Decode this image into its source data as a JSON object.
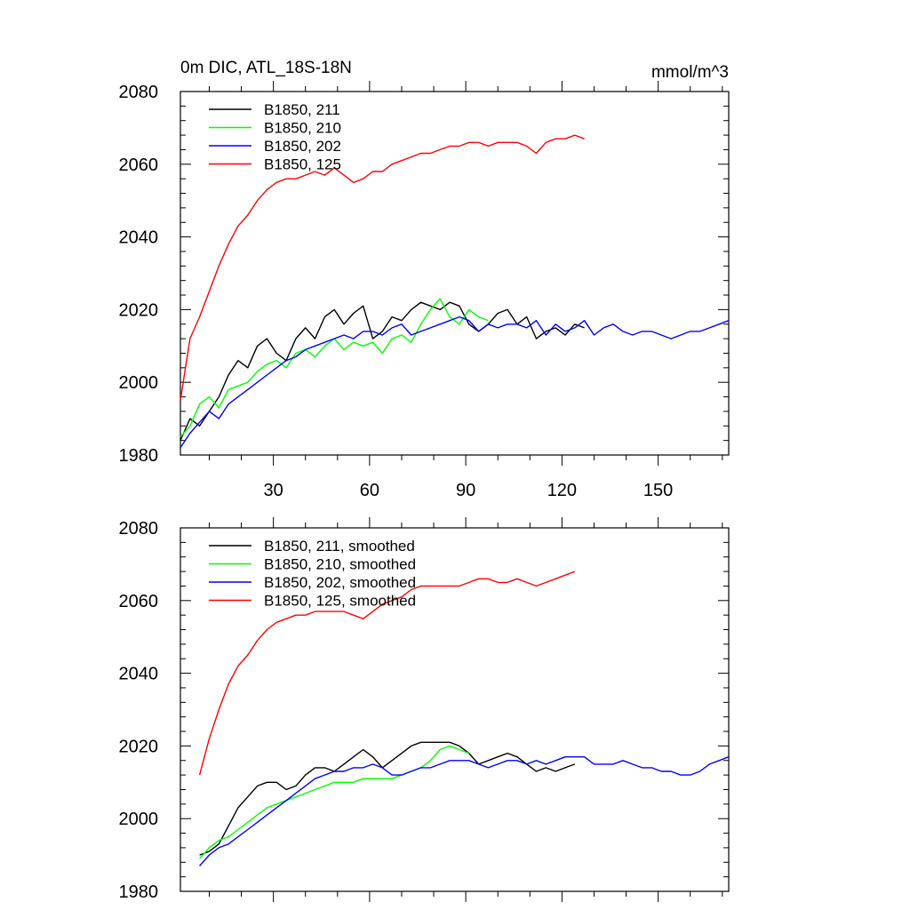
{
  "figure": {
    "title_left": "0m DIC, ATL_18S-18N",
    "title_right": "mmol/m^3"
  },
  "chart_data": [
    {
      "type": "line",
      "panel": "top",
      "xlim": [
        1,
        172
      ],
      "ylim": [
        1980,
        2080
      ],
      "xticks": [
        30,
        60,
        90,
        120,
        150
      ],
      "xtick_labels": [
        "30",
        "60",
        "90",
        "120",
        "150"
      ],
      "yticks": [
        1980,
        2000,
        2020,
        2040,
        2060,
        2080
      ],
      "ytick_labels": [
        "1980",
        "2000",
        "2020",
        "2040",
        "2060",
        "2080"
      ],
      "legend_position": "top-left",
      "series": [
        {
          "name": "B1850, 211",
          "color": "#000000",
          "x": [
            1,
            4,
            7,
            10,
            13,
            16,
            19,
            22,
            25,
            28,
            31,
            34,
            37,
            40,
            43,
            46,
            49,
            52,
            55,
            58,
            61,
            64,
            67,
            70,
            73,
            76,
            79,
            82,
            85,
            88,
            91,
            94,
            97,
            100,
            103,
            106,
            109,
            112,
            115,
            118,
            121,
            124,
            127
          ],
          "y": [
            1984,
            1990,
            1988,
            1992,
            1996,
            2002,
            2006,
            2004,
            2010,
            2012,
            2008,
            2006,
            2012,
            2015,
            2012,
            2018,
            2020,
            2016,
            2019,
            2021,
            2012,
            2014,
            2018,
            2017,
            2020,
            2022,
            2021,
            2020,
            2022,
            2021,
            2016,
            2014,
            2016,
            2019,
            2020,
            2016,
            2018,
            2012,
            2014,
            2015,
            2013,
            2016,
            2015
          ]
        },
        {
          "name": "B1850, 210",
          "color": "#00ff00",
          "x": [
            1,
            4,
            7,
            10,
            13,
            16,
            19,
            22,
            25,
            28,
            31,
            34,
            37,
            40,
            43,
            46,
            49,
            52,
            55,
            58,
            61,
            64,
            67,
            70,
            73,
            76,
            79,
            82,
            85,
            88,
            91,
            94,
            97
          ],
          "y": [
            1985,
            1988,
            1994,
            1996,
            1993,
            1998,
            1999,
            2000,
            2003,
            2005,
            2006,
            2004,
            2008,
            2009,
            2007,
            2010,
            2012,
            2009,
            2011,
            2010,
            2011,
            2008,
            2012,
            2013,
            2011,
            2016,
            2020,
            2023,
            2018,
            2016,
            2020,
            2018,
            2017
          ]
        },
        {
          "name": "B1850, 202",
          "color": "#0000ff",
          "x": [
            1,
            4,
            7,
            10,
            13,
            16,
            19,
            22,
            25,
            28,
            31,
            34,
            37,
            40,
            43,
            46,
            49,
            52,
            55,
            58,
            61,
            64,
            67,
            70,
            73,
            76,
            79,
            82,
            85,
            88,
            91,
            94,
            97,
            100,
            103,
            106,
            109,
            112,
            115,
            118,
            121,
            124,
            127,
            130,
            133,
            136,
            139,
            142,
            145,
            148,
            151,
            154,
            157,
            160,
            163,
            166,
            169,
            172
          ],
          "y": [
            1982,
            1986,
            1989,
            1992,
            1990,
            1994,
            1996,
            1998,
            2000,
            2002,
            2004,
            2006,
            2007,
            2009,
            2010,
            2011,
            2012,
            2013,
            2012,
            2014,
            2014,
            2013,
            2015,
            2016,
            2013,
            2014,
            2015,
            2016,
            2017,
            2018,
            2017,
            2014,
            2016,
            2015,
            2016,
            2016,
            2015,
            2017,
            2013,
            2016,
            2014,
            2015,
            2017,
            2013,
            2015,
            2016,
            2014,
            2013,
            2014,
            2014,
            2013,
            2012,
            2013,
            2014,
            2014,
            2015,
            2016,
            2017
          ]
        },
        {
          "name": "B1850, 125",
          "color": "#ff0000",
          "x": [
            1,
            4,
            7,
            10,
            13,
            16,
            19,
            22,
            25,
            28,
            31,
            34,
            37,
            40,
            43,
            46,
            49,
            52,
            55,
            58,
            61,
            64,
            67,
            70,
            73,
            76,
            79,
            82,
            85,
            88,
            91,
            94,
            97,
            100,
            103,
            106,
            109,
            112,
            115,
            118,
            121,
            124,
            127
          ],
          "y": [
            1995,
            2012,
            2018,
            2025,
            2032,
            2038,
            2043,
            2046,
            2050,
            2053,
            2055,
            2056,
            2056,
            2057,
            2058,
            2057,
            2059,
            2057,
            2055,
            2056,
            2058,
            2058,
            2060,
            2061,
            2062,
            2063,
            2063,
            2064,
            2065,
            2065,
            2066,
            2066,
            2065,
            2066,
            2066,
            2066,
            2065,
            2063,
            2066,
            2067,
            2067,
            2068,
            2067
          ]
        }
      ]
    },
    {
      "type": "line",
      "panel": "bottom",
      "xlim": [
        1,
        172
      ],
      "ylim": [
        1980,
        2080
      ],
      "xticks": [
        30,
        60,
        90,
        120,
        150
      ],
      "yticks": [
        1980,
        2000,
        2020,
        2040,
        2060,
        2080
      ],
      "ytick_labels": [
        "1980",
        "2000",
        "2020",
        "2040",
        "2060",
        "2080"
      ],
      "legend_position": "top-left",
      "series": [
        {
          "name": "B1850, 211, smoothed",
          "color": "#000000",
          "x": [
            7,
            10,
            13,
            16,
            19,
            22,
            25,
            28,
            31,
            34,
            37,
            40,
            43,
            46,
            49,
            52,
            55,
            58,
            61,
            64,
            67,
            70,
            73,
            76,
            79,
            82,
            85,
            88,
            91,
            94,
            97,
            100,
            103,
            106,
            109,
            112,
            115,
            118,
            121,
            124
          ],
          "y": [
            1990,
            1991,
            1993,
            1998,
            2003,
            2006,
            2009,
            2010,
            2010,
            2008,
            2009,
            2012,
            2014,
            2014,
            2013,
            2015,
            2017,
            2019,
            2017,
            2014,
            2016,
            2018,
            2020,
            2021,
            2021,
            2021,
            2021,
            2020,
            2018,
            2015,
            2016,
            2017,
            2018,
            2017,
            2015,
            2013,
            2014,
            2013,
            2014,
            2015
          ]
        },
        {
          "name": "B1850, 210, smoothed",
          "color": "#00ff00",
          "x": [
            7,
            10,
            13,
            16,
            19,
            22,
            25,
            28,
            31,
            34,
            37,
            40,
            43,
            46,
            49,
            52,
            55,
            58,
            61,
            64,
            67,
            70,
            73,
            76,
            79,
            82,
            85,
            88,
            91
          ],
          "y": [
            1989,
            1992,
            1994,
            1995,
            1997,
            1999,
            2001,
            2003,
            2004,
            2005,
            2006,
            2007,
            2008,
            2009,
            2010,
            2010,
            2010,
            2011,
            2011,
            2011,
            2011,
            2012,
            2013,
            2014,
            2016,
            2019,
            2020,
            2019,
            2018
          ]
        },
        {
          "name": "B1850, 202, smoothed",
          "color": "#0000ff",
          "x": [
            7,
            10,
            13,
            16,
            19,
            22,
            25,
            28,
            31,
            34,
            37,
            40,
            43,
            46,
            49,
            52,
            55,
            58,
            61,
            64,
            67,
            70,
            73,
            76,
            79,
            82,
            85,
            88,
            91,
            94,
            97,
            100,
            103,
            106,
            109,
            112,
            115,
            118,
            121,
            124,
            127,
            130,
            133,
            136,
            139,
            142,
            145,
            148,
            151,
            154,
            157,
            160,
            163,
            166,
            169,
            172
          ],
          "y": [
            1987,
            1990,
            1992,
            1993,
            1995,
            1997,
            1999,
            2001,
            2003,
            2005,
            2007,
            2009,
            2011,
            2012,
            2013,
            2013,
            2014,
            2014,
            2015,
            2014,
            2012,
            2012,
            2013,
            2014,
            2014,
            2015,
            2016,
            2016,
            2016,
            2015,
            2014,
            2015,
            2016,
            2016,
            2015,
            2016,
            2015,
            2016,
            2017,
            2017,
            2017,
            2015,
            2015,
            2015,
            2016,
            2015,
            2014,
            2014,
            2013,
            2013,
            2012,
            2012,
            2013,
            2015,
            2016,
            2017
          ]
        },
        {
          "name": "B1850, 125, smoothed",
          "color": "#ff0000",
          "x": [
            7,
            10,
            13,
            16,
            19,
            22,
            25,
            28,
            31,
            34,
            37,
            40,
            43,
            46,
            49,
            52,
            55,
            58,
            61,
            64,
            67,
            70,
            73,
            76,
            79,
            82,
            85,
            88,
            91,
            94,
            97,
            100,
            103,
            106,
            109,
            112,
            115,
            118,
            121,
            124
          ],
          "y": [
            2012,
            2022,
            2030,
            2037,
            2042,
            2045,
            2049,
            2052,
            2054,
            2055,
            2056,
            2056,
            2057,
            2057,
            2057,
            2057,
            2056,
            2055,
            2057,
            2059,
            2060,
            2061,
            2063,
            2064,
            2064,
            2064,
            2064,
            2064,
            2065,
            2066,
            2066,
            2065,
            2065,
            2066,
            2065,
            2064,
            2065,
            2066,
            2067,
            2068
          ]
        }
      ]
    }
  ]
}
